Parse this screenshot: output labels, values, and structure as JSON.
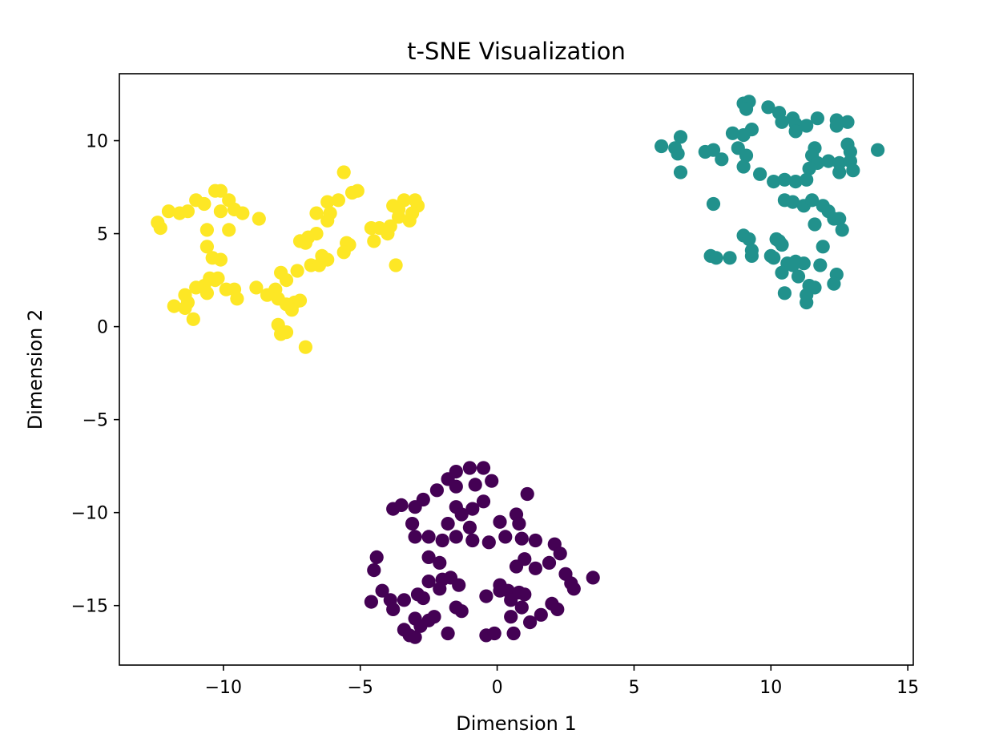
{
  "chart_data": {
    "type": "scatter",
    "title": "t-SNE Visualization",
    "xlabel": "Dimension 1",
    "ylabel": "Dimension 2",
    "xlim": [
      -13.8,
      15.2
    ],
    "ylim": [
      -18.2,
      13.6
    ],
    "xticks": [
      -10,
      -5,
      0,
      5,
      10,
      15
    ],
    "yticks": [
      -15,
      -10,
      -5,
      0,
      5,
      10
    ],
    "xtick_labels": [
      "−10",
      "−5",
      "0",
      "5",
      "10",
      "15"
    ],
    "ytick_labels": [
      "−15",
      "−10",
      "−5",
      "0",
      "5",
      "10"
    ],
    "grid": false,
    "legend": "none",
    "series": [
      {
        "color": "#440154",
        "points": [
          [
            -1.0,
            -7.6
          ],
          [
            -0.5,
            -7.6
          ],
          [
            -1.5,
            -7.8
          ],
          [
            -1.8,
            -8.2
          ],
          [
            -0.8,
            -8.5
          ],
          [
            -1.5,
            -8.6
          ],
          [
            -2.2,
            -8.8
          ],
          [
            -0.2,
            -8.3
          ],
          [
            1.1,
            -9.0
          ],
          [
            -3.8,
            -9.8
          ],
          [
            -3.5,
            -9.6
          ],
          [
            -3.0,
            -9.7
          ],
          [
            -2.7,
            -9.3
          ],
          [
            -1.5,
            -9.7
          ],
          [
            -0.9,
            -9.8
          ],
          [
            -0.5,
            -9.4
          ],
          [
            -1.3,
            -10.1
          ],
          [
            0.7,
            -10.1
          ],
          [
            -3.1,
            -10.6
          ],
          [
            -1.8,
            -10.6
          ],
          [
            -1.0,
            -10.8
          ],
          [
            0.1,
            -10.5
          ],
          [
            0.8,
            -10.6
          ],
          [
            -3.0,
            -11.3
          ],
          [
            -2.5,
            -11.3
          ],
          [
            -2.0,
            -11.5
          ],
          [
            -1.5,
            -11.3
          ],
          [
            -0.9,
            -11.5
          ],
          [
            -0.3,
            -11.6
          ],
          [
            0.3,
            -11.3
          ],
          [
            0.9,
            -11.4
          ],
          [
            1.4,
            -11.5
          ],
          [
            2.1,
            -11.7
          ],
          [
            -4.4,
            -12.4
          ],
          [
            -2.5,
            -12.4
          ],
          [
            -2.1,
            -12.7
          ],
          [
            1.0,
            -12.5
          ],
          [
            2.3,
            -12.2
          ],
          [
            1.9,
            -12.7
          ],
          [
            -4.5,
            -13.1
          ],
          [
            0.7,
            -12.9
          ],
          [
            1.4,
            -13.0
          ],
          [
            2.5,
            -13.3
          ],
          [
            -2.5,
            -13.7
          ],
          [
            -2.0,
            -13.6
          ],
          [
            -1.7,
            -13.5
          ],
          [
            -1.4,
            -13.9
          ],
          [
            2.7,
            -13.8
          ],
          [
            3.5,
            -13.5
          ],
          [
            0.1,
            -13.9
          ],
          [
            -4.2,
            -14.2
          ],
          [
            -2.1,
            -14.1
          ],
          [
            0.4,
            -14.2
          ],
          [
            2.8,
            -14.1
          ],
          [
            -4.6,
            -14.8
          ],
          [
            -3.9,
            -14.7
          ],
          [
            -3.4,
            -14.7
          ],
          [
            -2.9,
            -14.4
          ],
          [
            -2.7,
            -14.6
          ],
          [
            -0.4,
            -14.5
          ],
          [
            0.5,
            -14.7
          ],
          [
            0.8,
            -14.3
          ],
          [
            1.0,
            -14.4
          ],
          [
            -3.8,
            -15.2
          ],
          [
            -1.5,
            -15.1
          ],
          [
            -1.3,
            -15.3
          ],
          [
            0.9,
            -15.1
          ],
          [
            2.0,
            -14.9
          ],
          [
            2.2,
            -15.2
          ],
          [
            -3.0,
            -15.7
          ],
          [
            -2.5,
            -15.8
          ],
          [
            -2.3,
            -15.6
          ],
          [
            0.5,
            -15.6
          ],
          [
            1.6,
            -15.5
          ],
          [
            1.2,
            -15.9
          ],
          [
            -2.8,
            -16.1
          ],
          [
            -3.4,
            -16.3
          ],
          [
            -3.2,
            -16.6
          ],
          [
            -3.0,
            -16.7
          ],
          [
            -1.8,
            -16.5
          ],
          [
            -0.4,
            -16.6
          ],
          [
            -0.1,
            -16.5
          ],
          [
            0.6,
            -16.5
          ],
          [
            0.1,
            -14.2
          ]
        ]
      },
      {
        "color": "#21918c",
        "points": [
          [
            9.0,
            12.0
          ],
          [
            9.2,
            12.1
          ],
          [
            9.1,
            11.7
          ],
          [
            9.9,
            11.8
          ],
          [
            10.3,
            11.5
          ],
          [
            10.8,
            11.2
          ],
          [
            11.7,
            11.2
          ],
          [
            12.4,
            11.1
          ],
          [
            12.8,
            11.0
          ],
          [
            10.4,
            11.0
          ],
          [
            10.9,
            10.9
          ],
          [
            11.3,
            10.8
          ],
          [
            12.4,
            10.8
          ],
          [
            9.3,
            10.6
          ],
          [
            9.0,
            10.3
          ],
          [
            8.6,
            10.4
          ],
          [
            10.9,
            10.5
          ],
          [
            6.7,
            10.2
          ],
          [
            6.0,
            9.7
          ],
          [
            6.5,
            9.6
          ],
          [
            6.6,
            9.3
          ],
          [
            7.6,
            9.4
          ],
          [
            7.9,
            9.5
          ],
          [
            8.8,
            9.6
          ],
          [
            9.1,
            9.2
          ],
          [
            8.2,
            9.0
          ],
          [
            11.6,
            9.6
          ],
          [
            11.5,
            9.2
          ],
          [
            12.8,
            9.8
          ],
          [
            12.9,
            9.4
          ],
          [
            13.9,
            9.5
          ],
          [
            11.7,
            8.8
          ],
          [
            12.1,
            8.9
          ],
          [
            12.5,
            8.8
          ],
          [
            12.9,
            8.9
          ],
          [
            6.7,
            8.3
          ],
          [
            9.0,
            8.6
          ],
          [
            9.6,
            8.2
          ],
          [
            11.4,
            8.5
          ],
          [
            12.5,
            8.3
          ],
          [
            13.0,
            8.4
          ],
          [
            10.1,
            7.8
          ],
          [
            10.5,
            7.9
          ],
          [
            10.9,
            7.8
          ],
          [
            11.3,
            7.9
          ],
          [
            7.9,
            6.6
          ],
          [
            10.5,
            6.8
          ],
          [
            10.8,
            6.7
          ],
          [
            11.2,
            6.5
          ],
          [
            11.5,
            6.8
          ],
          [
            11.9,
            6.5
          ],
          [
            12.1,
            6.2
          ],
          [
            12.3,
            5.8
          ],
          [
            12.5,
            5.8
          ],
          [
            11.6,
            5.5
          ],
          [
            12.6,
            5.2
          ],
          [
            9.0,
            4.9
          ],
          [
            9.2,
            4.7
          ],
          [
            10.2,
            4.7
          ],
          [
            10.3,
            4.6
          ],
          [
            10.4,
            4.4
          ],
          [
            11.9,
            4.3
          ],
          [
            7.8,
            3.8
          ],
          [
            8.0,
            3.7
          ],
          [
            8.5,
            3.7
          ],
          [
            9.3,
            3.8
          ],
          [
            9.3,
            4.1
          ],
          [
            10.0,
            3.8
          ],
          [
            10.1,
            3.7
          ],
          [
            10.6,
            3.4
          ],
          [
            10.9,
            3.5
          ],
          [
            11.2,
            3.4
          ],
          [
            11.8,
            3.3
          ],
          [
            10.8,
            3.3
          ],
          [
            10.4,
            2.9
          ],
          [
            11.0,
            2.7
          ],
          [
            12.4,
            2.8
          ],
          [
            11.4,
            2.2
          ],
          [
            11.6,
            2.1
          ],
          [
            12.3,
            2.3
          ],
          [
            10.5,
            1.8
          ],
          [
            11.3,
            1.7
          ],
          [
            11.3,
            1.3
          ]
        ]
      },
      {
        "color": "#fde725",
        "points": [
          [
            -5.6,
            8.3
          ],
          [
            -10.3,
            7.3
          ],
          [
            -10.1,
            7.3
          ],
          [
            -5.3,
            7.2
          ],
          [
            -5.1,
            7.3
          ],
          [
            -11.0,
            6.8
          ],
          [
            -10.7,
            6.6
          ],
          [
            -9.8,
            6.8
          ],
          [
            -6.2,
            6.7
          ],
          [
            -5.8,
            6.8
          ],
          [
            -3.8,
            6.5
          ],
          [
            -3.4,
            6.8
          ],
          [
            -3.0,
            6.8
          ],
          [
            -2.9,
            6.5
          ],
          [
            -12.0,
            6.2
          ],
          [
            -11.6,
            6.1
          ],
          [
            -11.3,
            6.2
          ],
          [
            -10.1,
            6.2
          ],
          [
            -9.6,
            6.3
          ],
          [
            -9.3,
            6.1
          ],
          [
            -6.6,
            6.1
          ],
          [
            -6.1,
            6.1
          ],
          [
            -3.6,
            6.3
          ],
          [
            -12.4,
            5.6
          ],
          [
            -12.3,
            5.3
          ],
          [
            -8.7,
            5.8
          ],
          [
            -6.2,
            5.7
          ],
          [
            -3.2,
            5.7
          ],
          [
            -3.1,
            6.1
          ],
          [
            -3.6,
            5.9
          ],
          [
            -4.6,
            5.3
          ],
          [
            -4.3,
            5.3
          ],
          [
            -4.0,
            5.0
          ],
          [
            -3.9,
            5.4
          ],
          [
            -10.6,
            5.2
          ],
          [
            -9.8,
            5.2
          ],
          [
            -4.5,
            4.6
          ],
          [
            -7.0,
            4.5
          ],
          [
            -7.2,
            4.6
          ],
          [
            -6.9,
            4.8
          ],
          [
            -6.6,
            5.0
          ],
          [
            -5.4,
            4.4
          ],
          [
            -5.5,
            4.5
          ],
          [
            -5.6,
            4.0
          ],
          [
            -10.6,
            4.3
          ],
          [
            -10.4,
            3.7
          ],
          [
            -10.1,
            3.6
          ],
          [
            -6.2,
            3.6
          ],
          [
            -6.4,
            3.8
          ],
          [
            -6.8,
            3.3
          ],
          [
            -6.5,
            3.3
          ],
          [
            -3.7,
            3.3
          ],
          [
            -7.9,
            2.9
          ],
          [
            -7.3,
            3.0
          ],
          [
            -10.5,
            2.6
          ],
          [
            -10.3,
            2.5
          ],
          [
            -10.7,
            2.2
          ],
          [
            -8.1,
            2.0
          ],
          [
            -7.7,
            2.5
          ],
          [
            -10.2,
            2.6
          ],
          [
            -9.9,
            2.0
          ],
          [
            -9.6,
            2.0
          ],
          [
            -9.5,
            1.5
          ],
          [
            -11.0,
            2.1
          ],
          [
            -10.6,
            1.8
          ],
          [
            -8.8,
            2.1
          ],
          [
            -8.4,
            1.7
          ],
          [
            -8.0,
            1.5
          ],
          [
            -7.7,
            1.2
          ],
          [
            -7.4,
            1.3
          ],
          [
            -7.2,
            1.4
          ],
          [
            -11.4,
            1.7
          ],
          [
            -11.3,
            1.3
          ],
          [
            -11.8,
            1.1
          ],
          [
            -11.4,
            1.0
          ],
          [
            -11.1,
            0.4
          ],
          [
            -7.5,
            0.9
          ],
          [
            -8.0,
            0.1
          ],
          [
            -7.7,
            -0.3
          ],
          [
            -7.9,
            -0.4
          ],
          [
            -7.0,
            -1.1
          ]
        ]
      }
    ]
  }
}
